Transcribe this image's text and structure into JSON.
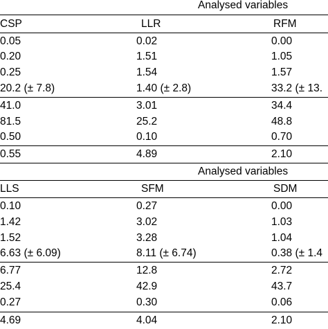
{
  "sections": [
    {
      "group_title": "Analysed variables",
      "columns": [
        "CSP",
        "LLR",
        "RFM"
      ],
      "rows": [
        [
          "0.05",
          "0.02",
          "0.00"
        ],
        [
          "0.20",
          "1.51",
          "1.05"
        ],
        [
          "0.25",
          "1.54",
          "1.57"
        ],
        [
          "20.2 (± 7.8)",
          "1.40 (± 2.8)",
          "33.2 (± 13."
        ],
        [
          "41.0",
          "3.01",
          "34.4"
        ],
        [
          "81.5",
          "25.2",
          "48.8"
        ],
        [
          "0.50",
          "0.10",
          "0.70"
        ],
        [
          "0.55",
          "4.89",
          "2.10"
        ]
      ]
    },
    {
      "group_title": "Analysed variables",
      "columns": [
        "LLS",
        "SFM",
        "SDM"
      ],
      "rows": [
        [
          "0.10",
          "0.27",
          "0.00"
        ],
        [
          "1.42",
          "3.02",
          "1.03"
        ],
        [
          "1.52",
          "3.28",
          "1.04"
        ],
        [
          "6.63 (± 6.09)",
          "8.11 (± 6.74)",
          "0.38 (± 1.4"
        ],
        [
          "6.77",
          "12.8",
          "2.72"
        ],
        [
          "25.4",
          "42.9",
          "43.7"
        ],
        [
          "0.27",
          "0.30",
          "0.06"
        ],
        [
          "4.69",
          "4.04",
          "2.10"
        ]
      ]
    }
  ]
}
